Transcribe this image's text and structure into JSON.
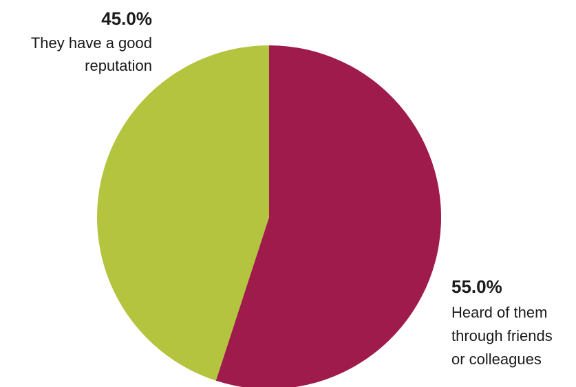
{
  "chart_data": {
    "type": "pie",
    "start_angle_deg": 0,
    "direction": "clockwise",
    "slices": [
      {
        "label": "Heard of them through friends or colleagues",
        "label_lines": [
          "Heard of them",
          "through friends",
          "or colleagues"
        ],
        "value": 55.0,
        "value_label": "55.0%",
        "color": "#9e1b4b"
      },
      {
        "label": "They have a good reputation",
        "label_lines": [
          "They have a good",
          "reputation"
        ],
        "value": 45.0,
        "value_label": "45.0%",
        "color": "#b5c43f"
      }
    ]
  }
}
